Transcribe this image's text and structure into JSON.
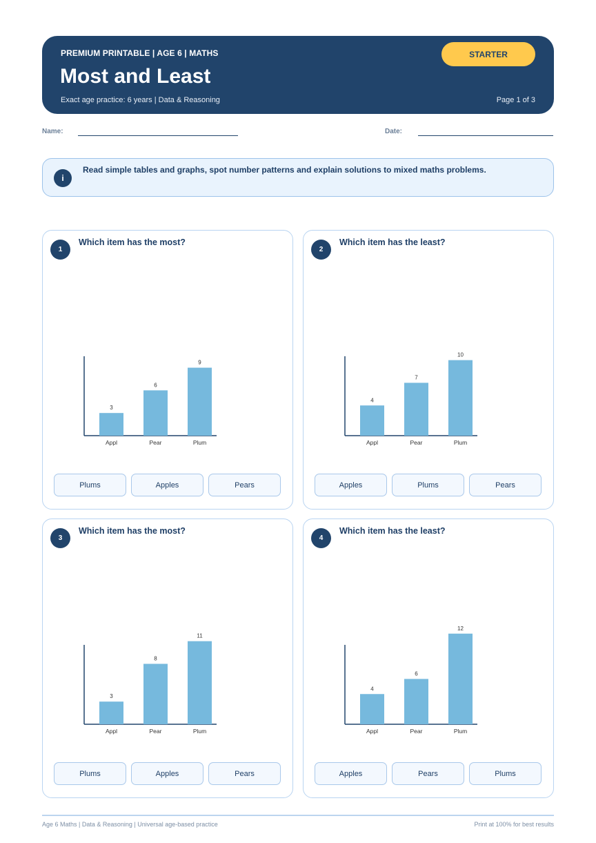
{
  "header": {
    "kicker": "PREMIUM PRINTABLE | AGE 6 | MATHS",
    "title": "Most and Least",
    "subtitle": "Exact age practice: 6 years | Data & Reasoning",
    "badge": "STARTER",
    "page": "Page 1 of 3"
  },
  "meta": {
    "name_label": "Name:",
    "date_label": "Date:"
  },
  "info": {
    "icon": "i",
    "text": "Read simple tables and graphs, spot number patterns and explain solutions to mixed maths problems."
  },
  "colors": {
    "navy": "#21446b",
    "bar": "#76b9dd",
    "accent": "#ffc94d"
  },
  "questions": [
    {
      "num": "1",
      "prompt": "Which item has the most?",
      "options": [
        "Plums",
        "Apples",
        "Pears"
      ]
    },
    {
      "num": "2",
      "prompt": "Which item has the least?",
      "options": [
        "Apples",
        "Plums",
        "Pears"
      ]
    },
    {
      "num": "3",
      "prompt": "Which item has the most?",
      "options": [
        "Plums",
        "Apples",
        "Pears"
      ]
    },
    {
      "num": "4",
      "prompt": "Which item has the least?",
      "options": [
        "Apples",
        "Pears",
        "Plums"
      ]
    }
  ],
  "chart_data": [
    {
      "type": "bar",
      "categories": [
        "Appl",
        "Pear",
        "Plum"
      ],
      "values": [
        3,
        6,
        9
      ]
    },
    {
      "type": "bar",
      "categories": [
        "Appl",
        "Pear",
        "Plum"
      ],
      "values": [
        4,
        7,
        10
      ]
    },
    {
      "type": "bar",
      "categories": [
        "Appl",
        "Pear",
        "Plum"
      ],
      "values": [
        3,
        8,
        11
      ]
    },
    {
      "type": "bar",
      "categories": [
        "Appl",
        "Pear",
        "Plum"
      ],
      "values": [
        4,
        6,
        12
      ]
    }
  ],
  "footer": {
    "left": "Age 6 Maths | Data & Reasoning | Universal age-based practice",
    "right": "Print at 100% for best results"
  }
}
